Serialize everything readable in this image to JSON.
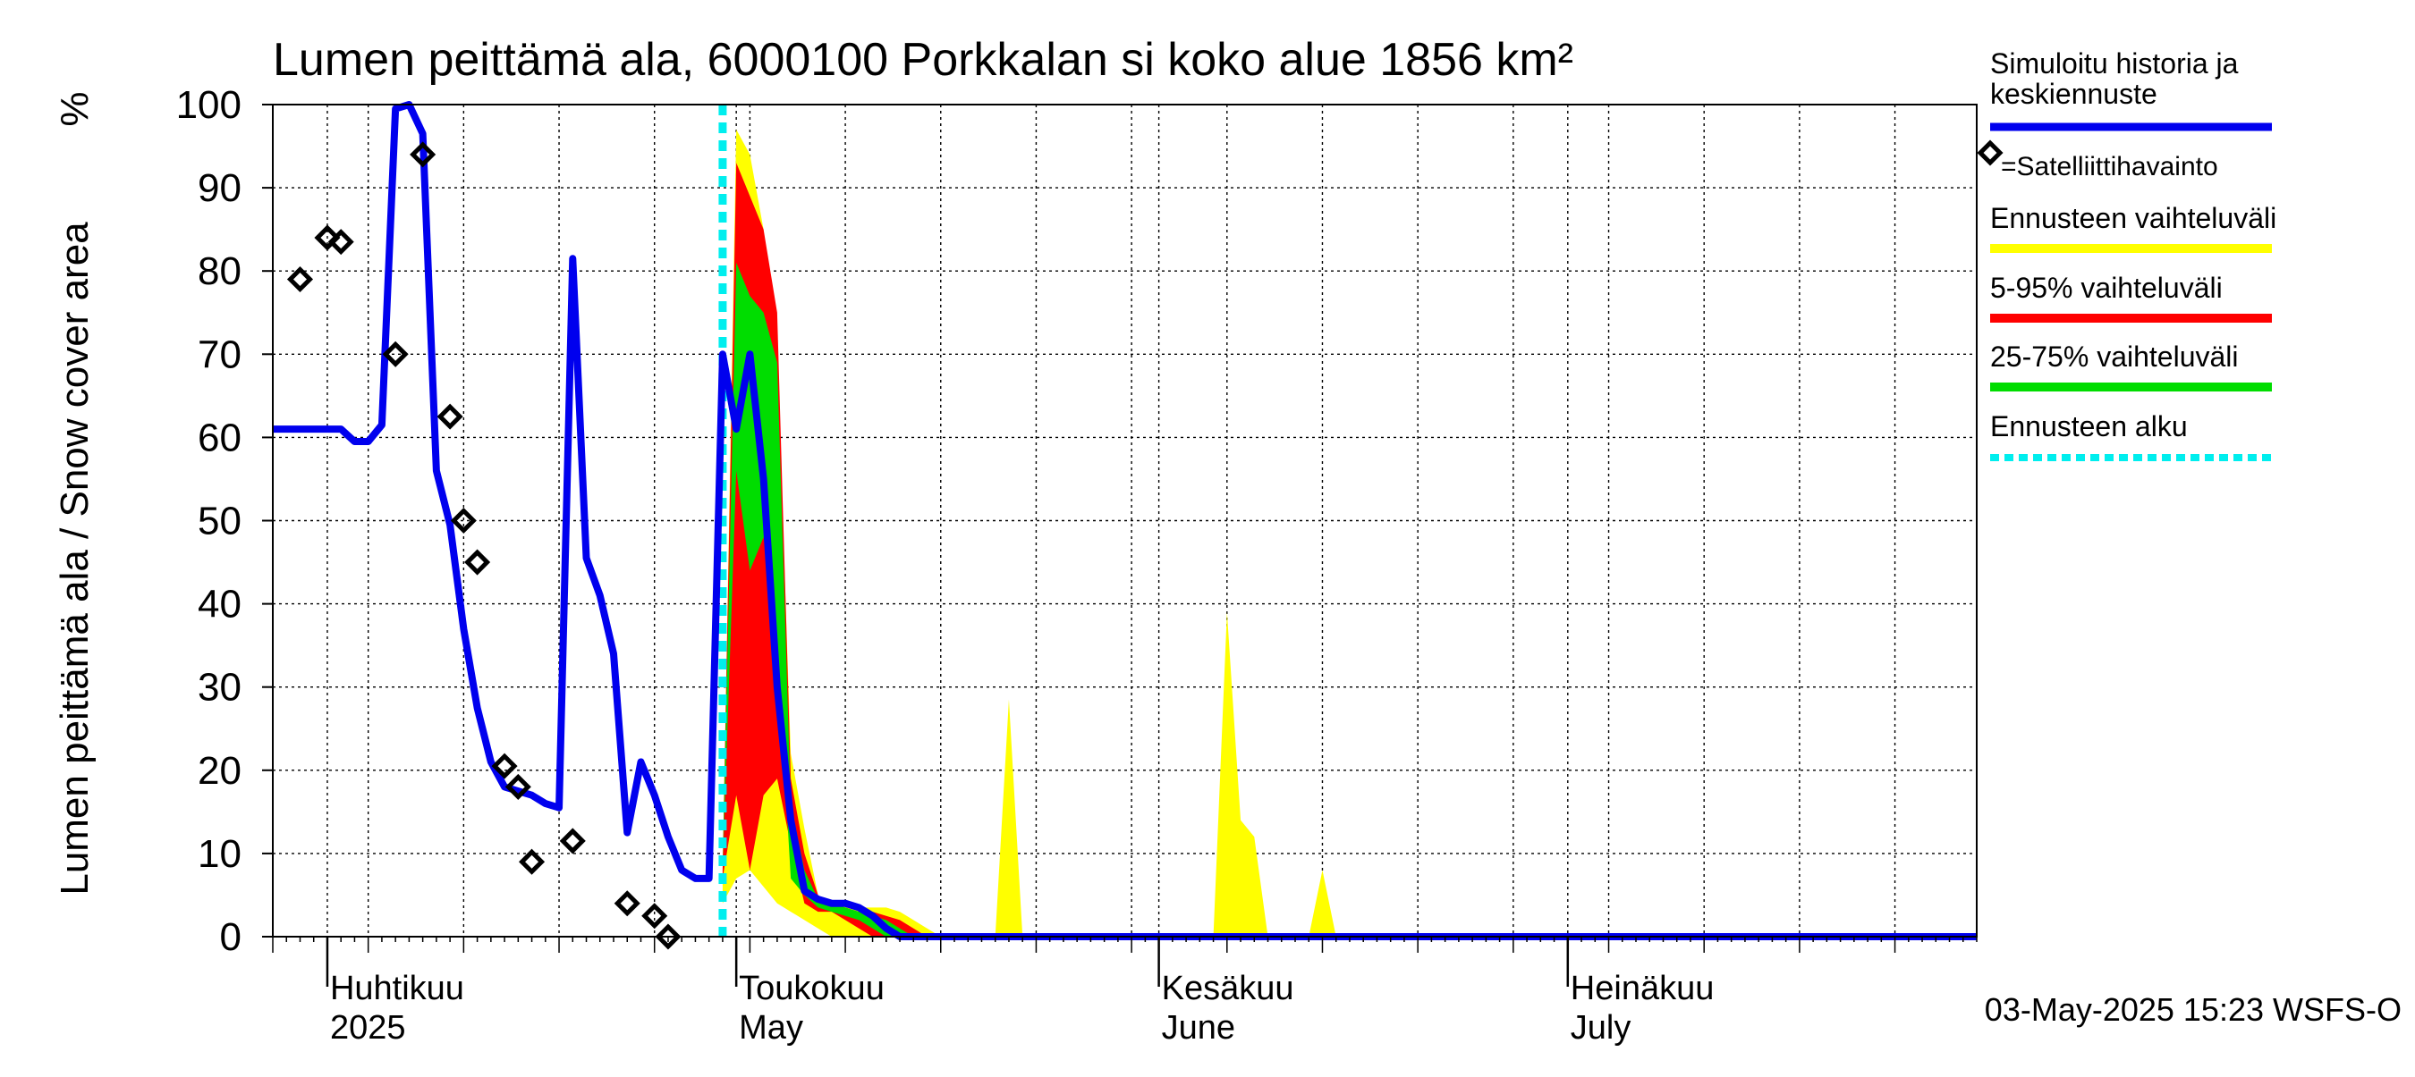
{
  "chart_data": {
    "type": "area",
    "title": "Lumen peittämä ala, 6000100 Porkkalan si koko alue 1856 km²",
    "ylabel": "Lumen peittämä ala / Snow cover area",
    "yunit": "%",
    "ylim": [
      0,
      100
    ],
    "yticks": [
      0,
      10,
      20,
      30,
      40,
      50,
      60,
      70,
      80,
      90,
      100
    ],
    "xlim": [
      "2025-03-28",
      "2025-07-31"
    ],
    "grid": true,
    "legend_placement": "right",
    "month_labels": [
      {
        "date": "2025-04-01",
        "fi": "Huhtikuu",
        "en": "2025"
      },
      {
        "date": "2025-05-01",
        "fi": "Toukokuu",
        "en": "May"
      },
      {
        "date": "2025-06-01",
        "fi": "Kesäkuu",
        "en": "June"
      },
      {
        "date": "2025-07-01",
        "fi": "Heinäkuu",
        "en": "July"
      }
    ],
    "forecast_start": "2025-04-30",
    "simulated": {
      "name": "Simuloitu historia ja keskiennuste",
      "color": "#0000ee",
      "x": [
        "2025-03-28",
        "2025-04-01",
        "2025-04-02",
        "2025-04-03",
        "2025-04-04",
        "2025-04-05",
        "2025-04-06",
        "2025-04-07",
        "2025-04-08",
        "2025-04-09",
        "2025-04-10",
        "2025-04-11",
        "2025-04-12",
        "2025-04-13",
        "2025-04-14",
        "2025-04-15",
        "2025-04-16",
        "2025-04-17",
        "2025-04-18",
        "2025-04-19",
        "2025-04-20",
        "2025-04-21",
        "2025-04-22",
        "2025-04-23",
        "2025-04-24",
        "2025-04-25",
        "2025-04-26",
        "2025-04-27",
        "2025-04-28",
        "2025-04-29",
        "2025-04-30",
        "2025-05-01",
        "2025-05-02",
        "2025-05-03",
        "2025-05-04",
        "2025-05-05",
        "2025-05-06",
        "2025-05-07",
        "2025-05-08",
        "2025-05-09",
        "2025-05-10",
        "2025-05-11",
        "2025-05-12",
        "2025-05-13",
        "2025-05-14",
        "2025-07-31"
      ],
      "y": [
        61,
        61,
        61,
        59.5,
        59.5,
        61.5,
        99.5,
        100,
        96.5,
        56,
        49.5,
        37,
        27.5,
        21,
        18,
        17.5,
        17,
        16,
        15.5,
        81.5,
        45.5,
        41,
        34,
        12.5,
        21,
        17,
        12,
        8,
        7,
        7,
        70,
        61,
        70,
        55,
        30,
        14,
        5.5,
        4.5,
        4,
        4,
        3.5,
        2.5,
        1,
        0,
        0,
        0
      ]
    },
    "observations": {
      "name": "=Satelliittihavainto",
      "x": [
        "2025-03-30",
        "2025-04-01",
        "2025-04-02",
        "2025-04-06",
        "2025-04-08",
        "2025-04-10",
        "2025-04-11",
        "2025-04-12",
        "2025-04-14",
        "2025-04-15",
        "2025-04-16",
        "2025-04-19",
        "2025-04-23",
        "2025-04-25",
        "2025-04-26"
      ],
      "y": [
        79,
        84,
        83.5,
        70,
        94,
        62.5,
        50,
        45,
        20.5,
        18,
        9,
        11.5,
        4,
        2.5,
        0
      ]
    },
    "bands": [
      {
        "name": "Ennusteen vaihteluväli",
        "color": "#ffff00",
        "x": [
          "2025-04-30",
          "2025-05-01",
          "2025-05-02",
          "2025-05-03",
          "2025-05-04",
          "2025-05-05",
          "2025-05-06",
          "2025-05-07",
          "2025-05-08",
          "2025-05-09",
          "2025-05-10",
          "2025-05-11",
          "2025-05-12",
          "2025-05-13",
          "2025-05-14",
          "2025-05-15",
          "2025-05-16",
          "2025-05-17",
          "2025-05-18",
          "2025-05-19",
          "2025-05-20",
          "2025-05-21",
          "2025-05-22",
          "2025-05-23",
          "2025-05-24",
          "2025-05-25",
          "2025-05-26",
          "2025-05-27",
          "2025-05-28",
          "2025-05-29",
          "2025-05-30",
          "2025-05-31",
          "2025-06-01",
          "2025-06-02",
          "2025-06-03",
          "2025-06-04",
          "2025-06-05",
          "2025-06-06",
          "2025-06-07",
          "2025-06-08",
          "2025-06-09",
          "2025-06-10",
          "2025-06-11",
          "2025-06-12",
          "2025-06-13",
          "2025-06-14"
        ],
        "low": [
          4,
          7,
          8,
          6,
          4,
          3,
          2,
          1,
          0,
          0,
          0,
          0,
          0,
          0,
          0,
          0,
          0,
          0,
          0,
          0,
          0,
          0,
          0,
          0,
          0,
          0,
          0,
          0,
          0,
          0,
          0,
          0,
          0,
          0,
          0,
          0,
          0,
          0,
          0,
          0,
          0,
          0,
          0,
          0,
          0,
          0
        ],
        "high": [
          8,
          97,
          94,
          85,
          70,
          22,
          13,
          5,
          4,
          4,
          3.5,
          3.5,
          3.5,
          3,
          2,
          1,
          0,
          0,
          0,
          0,
          0,
          28.5,
          0,
          0,
          0,
          0,
          0,
          0,
          0,
          0,
          0,
          0,
          0,
          0,
          0,
          0,
          0,
          39,
          14,
          12,
          0,
          0,
          0,
          0,
          8,
          0
        ]
      },
      {
        "name": "5-95% vaihteluväli",
        "color": "#ff0000",
        "x": [
          "2025-04-30",
          "2025-05-01",
          "2025-05-02",
          "2025-05-03",
          "2025-05-04",
          "2025-05-05",
          "2025-05-06",
          "2025-05-07",
          "2025-05-08",
          "2025-05-09",
          "2025-05-10",
          "2025-05-11",
          "2025-05-12",
          "2025-05-13",
          "2025-05-14",
          "2025-05-15",
          "2025-05-16",
          "2025-05-17"
        ],
        "low": [
          7,
          17,
          8,
          17,
          19,
          11,
          4,
          3,
          3,
          2,
          1,
          0,
          0,
          0,
          0,
          0,
          0,
          0
        ],
        "high": [
          8,
          93,
          89,
          85,
          75,
          19,
          10,
          5,
          4,
          3.5,
          3,
          3,
          2.5,
          2,
          1,
          0,
          0,
          0
        ]
      },
      {
        "name": "25-75% vaihteluväli",
        "color": "#00dd00",
        "x": [
          "2025-04-30",
          "2025-05-01",
          "2025-05-02",
          "2025-05-03",
          "2025-05-04",
          "2025-05-05",
          "2025-05-06",
          "2025-05-07",
          "2025-05-08",
          "2025-05-09",
          "2025-05-10",
          "2025-05-11",
          "2025-05-12",
          "2025-05-13",
          "2025-05-14",
          "2025-05-15"
        ],
        "low": [
          8,
          56,
          44,
          48,
          35,
          7,
          5,
          3.5,
          3,
          2.5,
          2,
          1,
          0,
          0,
          0,
          0
        ],
        "high": [
          8,
          81,
          77,
          75,
          69,
          16,
          8,
          4.5,
          4,
          3.5,
          3,
          2.5,
          2,
          1,
          0,
          0
        ]
      }
    ],
    "forecast_marker_name": "Ennusteen alku",
    "forecast_marker_color": "#00eeee",
    "footer": "03-May-2025 15:23 WSFS-O"
  }
}
